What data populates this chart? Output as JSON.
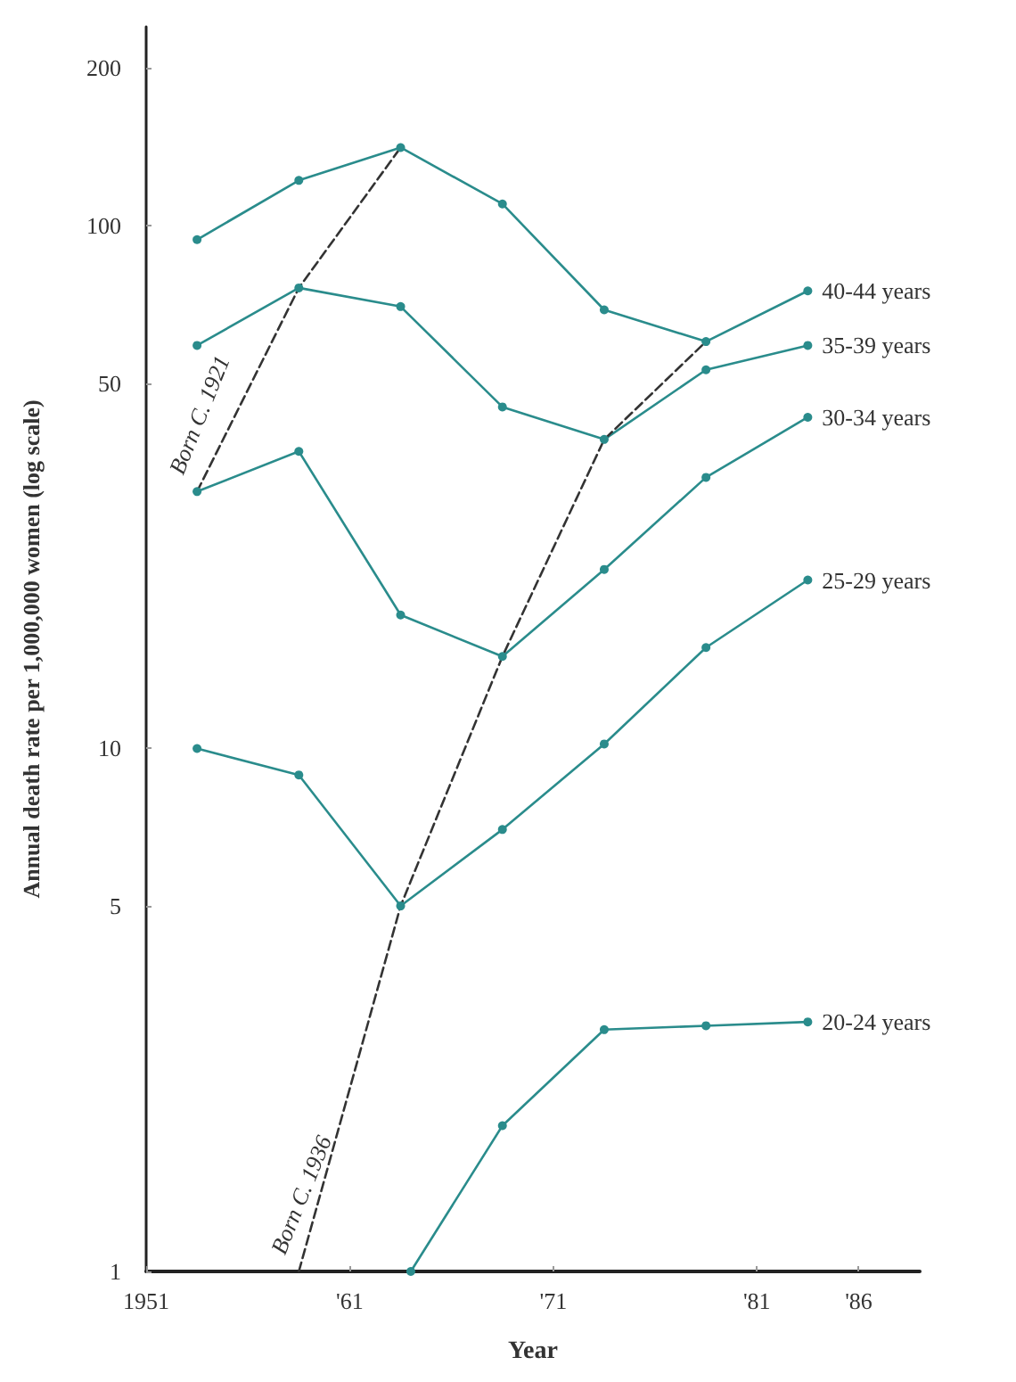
{
  "chart_data": {
    "type": "line",
    "xlabel": "Year",
    "ylabel": "Annual death rate per 1,000,000 women (log scale)",
    "x": [
      1953.5,
      1958.5,
      1963.5,
      1968.5,
      1973.5,
      1978.5,
      1983.5
    ],
    "series": [
      {
        "name": "40-44 years",
        "color": "#2a8c8c",
        "values": [
          94,
          122,
          141,
          110,
          69,
          60,
          75
        ]
      },
      {
        "name": "35-39 years",
        "color": "#2a8c8c",
        "values": [
          59,
          76,
          70,
          45,
          39,
          53,
          59
        ]
      },
      {
        "name": "30-34 years",
        "color": "#2a8c8c",
        "values": [
          31,
          37,
          18,
          15,
          22,
          33,
          43
        ]
      },
      {
        "name": "25-29 years",
        "color": "#2a8c8c",
        "values": [
          10,
          8.9,
          5.0,
          7.0,
          10.2,
          15.6,
          21
        ]
      },
      {
        "name": "20-24 years",
        "color": "#2a8c8c",
        "x": [
          1964,
          1968.5,
          1973.5,
          1978.5,
          1983.5
        ],
        "values": [
          1,
          1.9,
          2.9,
          2.95,
          3.0
        ]
      },
      {
        "color": "#333333",
        "x": [
          1953.5,
          1958.5,
          1963.5
        ],
        "values": [
          31,
          76,
          141
        ],
        "line_style": "dashed",
        "marker": "none"
      },
      {
        "color": "#333333",
        "x": [
          1958.5,
          1963.5,
          1968.5,
          1973.5,
          1978.5
        ],
        "values": [
          1,
          5.0,
          15,
          39,
          60
        ],
        "line_style": "dashed",
        "marker": "none"
      }
    ],
    "annotations": [
      {
        "text": "Born C. 1921",
        "x": 1953.5,
        "y": 31
      },
      {
        "text": "Born C. 1936",
        "x": 1958.5,
        "y": 1
      }
    ],
    "xlim": [
      1951,
      1989
    ],
    "xticks": [
      1951,
      {
        "value": 1961,
        "label": "'61"
      },
      {
        "value": 1971,
        "label": "'71"
      },
      {
        "value": 1981,
        "label": "'81"
      },
      {
        "value": 1986,
        "label": "'86"
      }
    ],
    "ylim": [
      1,
      240
    ],
    "yticks": [
      1,
      5,
      10,
      50,
      100,
      200
    ],
    "log": "y",
    "grid": false,
    "legend": false,
    "marker": "circle",
    "line_style": "solid"
  }
}
